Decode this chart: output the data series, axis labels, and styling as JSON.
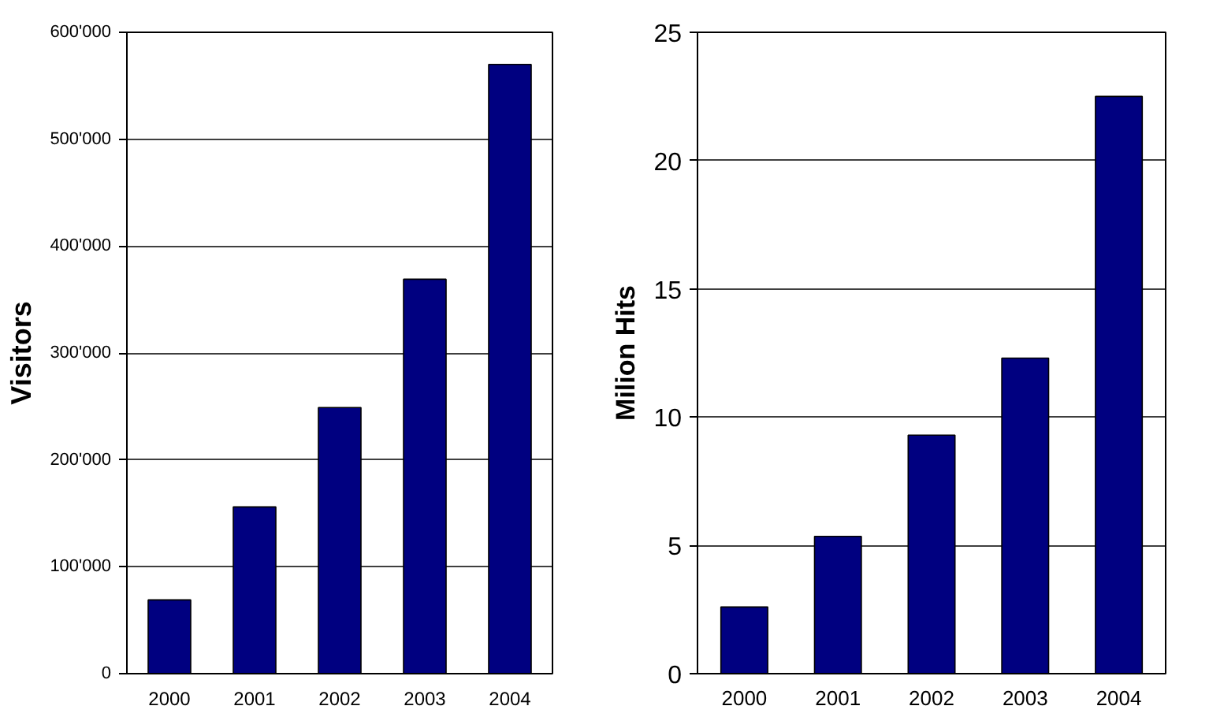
{
  "chart_data": [
    {
      "type": "bar",
      "ylabel": "Visitors",
      "categories": [
        "2000",
        "2001",
        "2002",
        "2003",
        "2004"
      ],
      "values": [
        69000,
        156000,
        249000,
        369000,
        570000
      ],
      "color": "#000080",
      "ylim": [
        0,
        600000
      ],
      "yticks": [
        {
          "value": 0,
          "label": "0"
        },
        {
          "value": 100000,
          "label": "100'000"
        },
        {
          "value": 200000,
          "label": "200'000"
        },
        {
          "value": 300000,
          "label": "300'000"
        },
        {
          "value": 400000,
          "label": "400'000"
        },
        {
          "value": 500000,
          "label": "500'000"
        },
        {
          "value": 600000,
          "label": "600'000"
        }
      ],
      "grid": "y"
    },
    {
      "type": "bar",
      "ylabel": "Milion Hits",
      "categories": [
        "2000",
        "2001",
        "2002",
        "2003",
        "2004"
      ],
      "values": [
        2.6,
        5.35,
        9.3,
        12.3,
        22.5
      ],
      "color": "#000080",
      "ylim": [
        0,
        25
      ],
      "yticks": [
        0,
        5,
        10,
        15,
        20,
        25
      ],
      "grid": "y"
    }
  ]
}
